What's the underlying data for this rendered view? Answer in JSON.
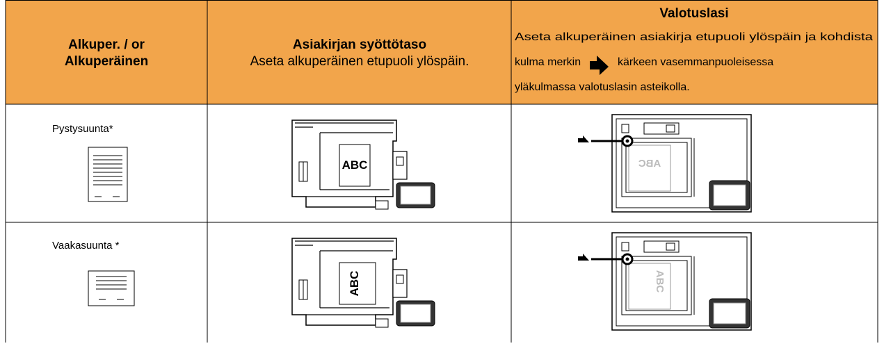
{
  "header": {
    "col1": {
      "line1": "Alkuper. / or",
      "line2": "Alkuperäinen"
    },
    "col2": {
      "title": "Asiakirjan syöttötaso",
      "text": "Aseta alkuperäinen etupuoli ylöspäin."
    },
    "col3": {
      "title": "Valotuslasi",
      "line1": "Aseta alkuperäinen asiakirja etupuoli ylöspäin ja kohdista",
      "line2_before": "kulma merkin",
      "line2_after": "kärkeen vasemmanpuoleisessa",
      "line3": "yläkulmassa valotuslasin asteikolla."
    }
  },
  "rows": [
    {
      "label": "Pystysuunta*",
      "feeder_text": "ABC",
      "glass_text": "ABC"
    },
    {
      "label": "Vaakasuunta *",
      "feeder_text": "ABC",
      "glass_text": "ABC"
    }
  ]
}
